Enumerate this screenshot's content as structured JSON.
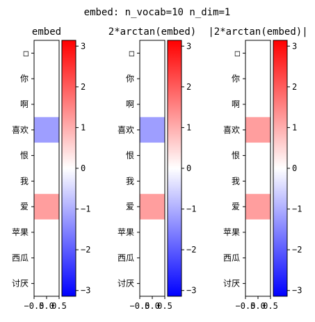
{
  "figure": {
    "suptitle": "embed: n_vocab=10 n_dim=1"
  },
  "colormap": {
    "name": "bwr",
    "low": "#0000ff",
    "mid": "#ffffff",
    "high": "#ff0000"
  },
  "chart_data": [
    {
      "type": "heatmap",
      "title": "embed",
      "row_labels": [
        "□",
        "你",
        "啊",
        "喜欢",
        "恨",
        "我",
        "爱",
        "苹果",
        "西瓜",
        "讨厌"
      ],
      "x_ticks": [
        -0.5,
        0.0,
        0.5
      ],
      "x_tick_labels": [
        "−0.5",
        "0.0",
        "0.5"
      ],
      "values": [
        0,
        0,
        0,
        -1.2,
        0,
        0,
        1.2,
        0,
        0,
        0
      ],
      "clim": [
        -3.14159,
        3.14159
      ],
      "colorbar_ticks": [
        3,
        2,
        1,
        0,
        -1,
        -2,
        -3
      ],
      "colorbar_tick_labels": [
        "3",
        "2",
        "1",
        "0",
        "−1",
        "−2",
        "−3"
      ]
    },
    {
      "type": "heatmap",
      "title": "2*arctan(embed)",
      "row_labels": [
        "□",
        "你",
        "啊",
        "喜欢",
        "恨",
        "我",
        "爱",
        "苹果",
        "西瓜",
        "讨厌"
      ],
      "x_ticks": [
        -0.5,
        0.0,
        0.5
      ],
      "x_tick_labels": [
        "−0.5",
        "0.0",
        "0.5"
      ],
      "values": [
        0,
        0,
        0,
        -1.2,
        0,
        0,
        1.2,
        0,
        0,
        0
      ],
      "clim": [
        -3.14159,
        3.14159
      ],
      "colorbar_ticks": [
        3,
        2,
        1,
        0,
        -1,
        -2,
        -3
      ],
      "colorbar_tick_labels": [
        "3",
        "2",
        "1",
        "0",
        "−1",
        "−2",
        "−3"
      ]
    },
    {
      "type": "heatmap",
      "title": "|2*arctan(embed)|",
      "row_labels": [
        "□",
        "你",
        "啊",
        "喜欢",
        "恨",
        "我",
        "爱",
        "苹果",
        "西瓜",
        "讨厌"
      ],
      "x_ticks": [
        -0.5,
        0.0,
        0.5
      ],
      "x_tick_labels": [
        "−0.5",
        "0.0",
        "0.5"
      ],
      "values": [
        0,
        0,
        0,
        1.2,
        0,
        0,
        1.2,
        0,
        0,
        0
      ],
      "clim": [
        -3.14159,
        3.14159
      ],
      "colorbar_ticks": [
        3,
        2,
        1,
        0,
        -1,
        -2,
        -3
      ],
      "colorbar_tick_labels": [
        "3",
        "2",
        "1",
        "0",
        "−1",
        "−2",
        "−3"
      ]
    }
  ]
}
